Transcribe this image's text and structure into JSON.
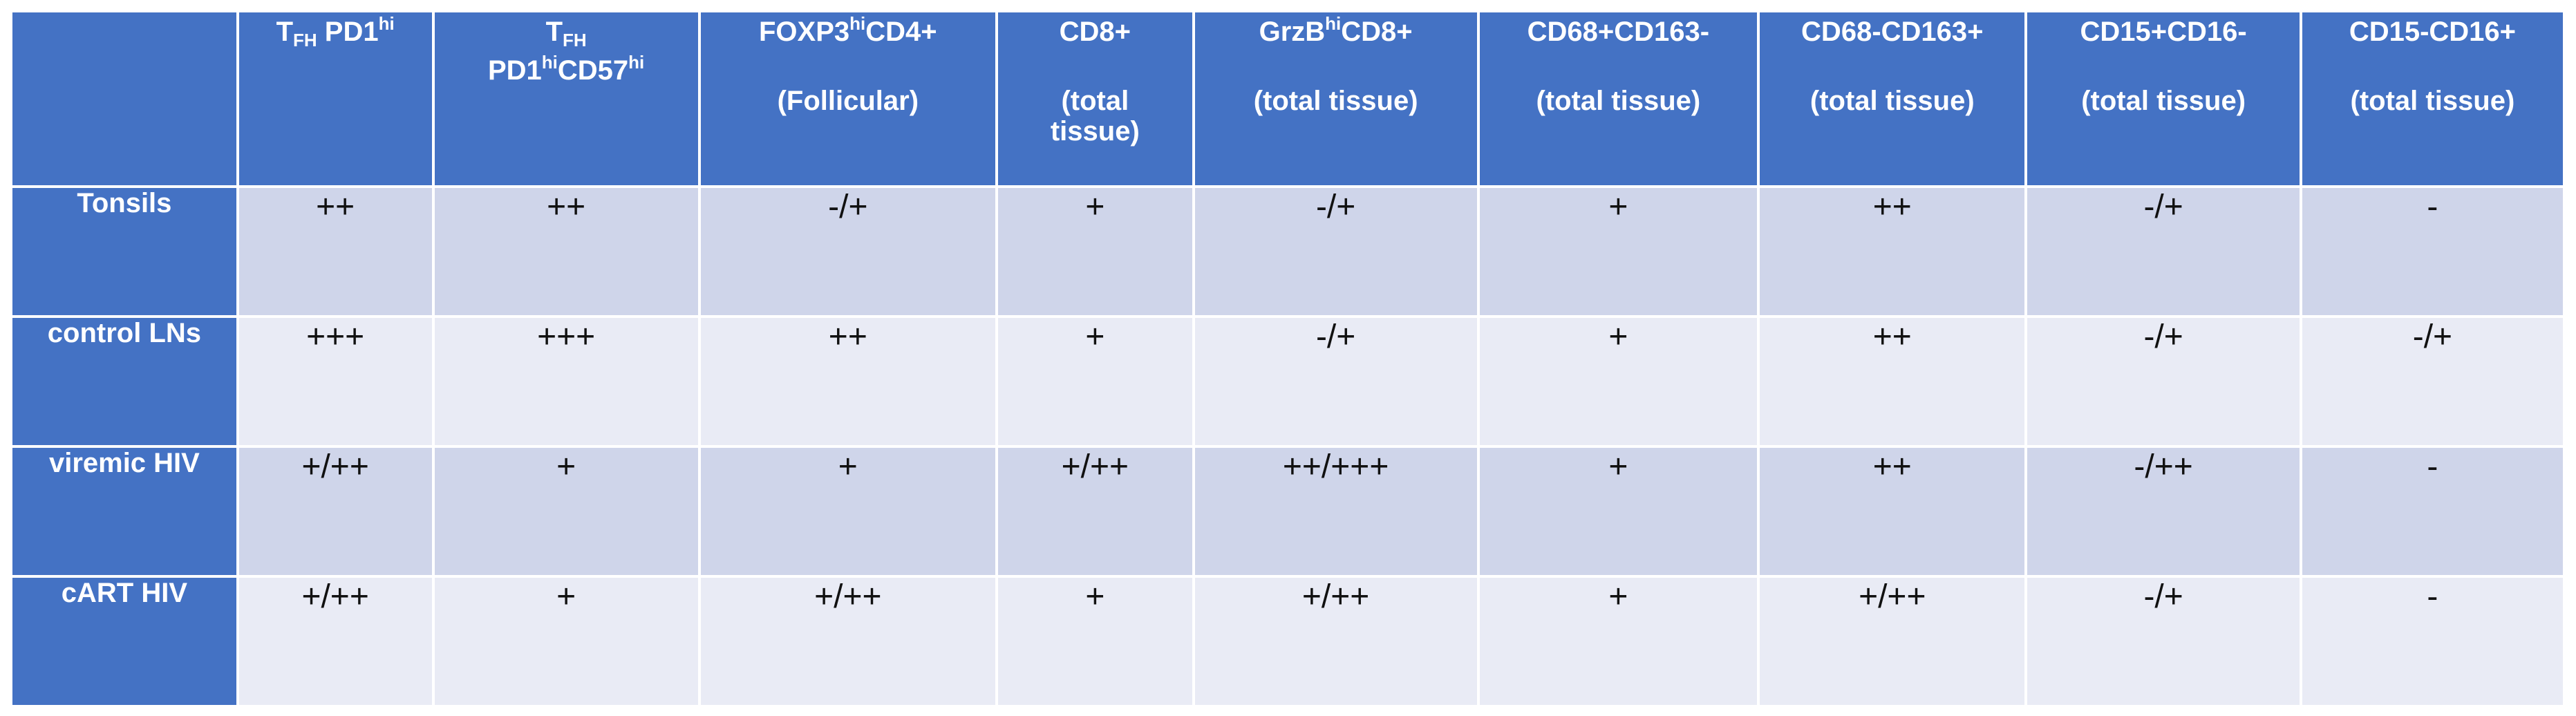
{
  "columns": [
    {
      "id": "tfh-pd1",
      "l1": "T",
      "l1_sub": "FH",
      "l1_rest": " PD1",
      "l1_sup": "hi"
    },
    {
      "id": "tfh-pd1-cd57",
      "l1": "T",
      "l1_sub": "FH",
      "l2": "PD1",
      "l2_sup": "hi",
      "l2_rest": "CD57",
      "l2_sup2": "hi"
    },
    {
      "id": "foxp3-cd4",
      "l1": "FOXP3",
      "l1_sup": "hi",
      "l1_rest": "CD4+",
      "l2": "(Follicular)"
    },
    {
      "id": "cd8",
      "l1": "CD8+",
      "l2": "(total",
      "l3": "tissue)"
    },
    {
      "id": "grzb-cd8",
      "l1": "GrzB",
      "l1_sup": "hi",
      "l1_rest": "CD8+",
      "l2": "(total tissue)"
    },
    {
      "id": "cd68p-cd163m",
      "l1": "CD68+CD163-",
      "l2": "(total tissue)"
    },
    {
      "id": "cd68m-cd163p",
      "l1": "CD68-CD163+",
      "l2": "(total tissue)"
    },
    {
      "id": "cd15p-cd16m",
      "l1": "CD15+CD16-",
      "l2": "(total tissue)"
    },
    {
      "id": "cd15m-cd16p",
      "l1": "CD15-CD16+",
      "l2": "(total tissue)"
    }
  ],
  "rows": [
    {
      "label": "Tonsils",
      "values": [
        "++",
        "++",
        "-/+",
        "+",
        "-/+",
        "+",
        "++",
        "-/+",
        "-"
      ]
    },
    {
      "label": "control LNs",
      "values": [
        "+++",
        "+++",
        "++",
        "+",
        "-/+",
        "+",
        "++",
        "-/+",
        "-/+"
      ]
    },
    {
      "label": "viremic HIV",
      "values": [
        "+/++",
        "+",
        "+",
        "+/++",
        "++/+++",
        "+",
        "++",
        "-/++",
        "-"
      ]
    },
    {
      "label": "cART HIV",
      "values": [
        "+/++",
        "+",
        "+/++",
        "+",
        "+/++",
        "+",
        "+/++",
        "-/+",
        "-"
      ]
    }
  ],
  "colors": {
    "header": "#4472c4",
    "row_odd": "#cfd5ea",
    "row_even": "#e9ebf5",
    "border": "#ffffff"
  }
}
